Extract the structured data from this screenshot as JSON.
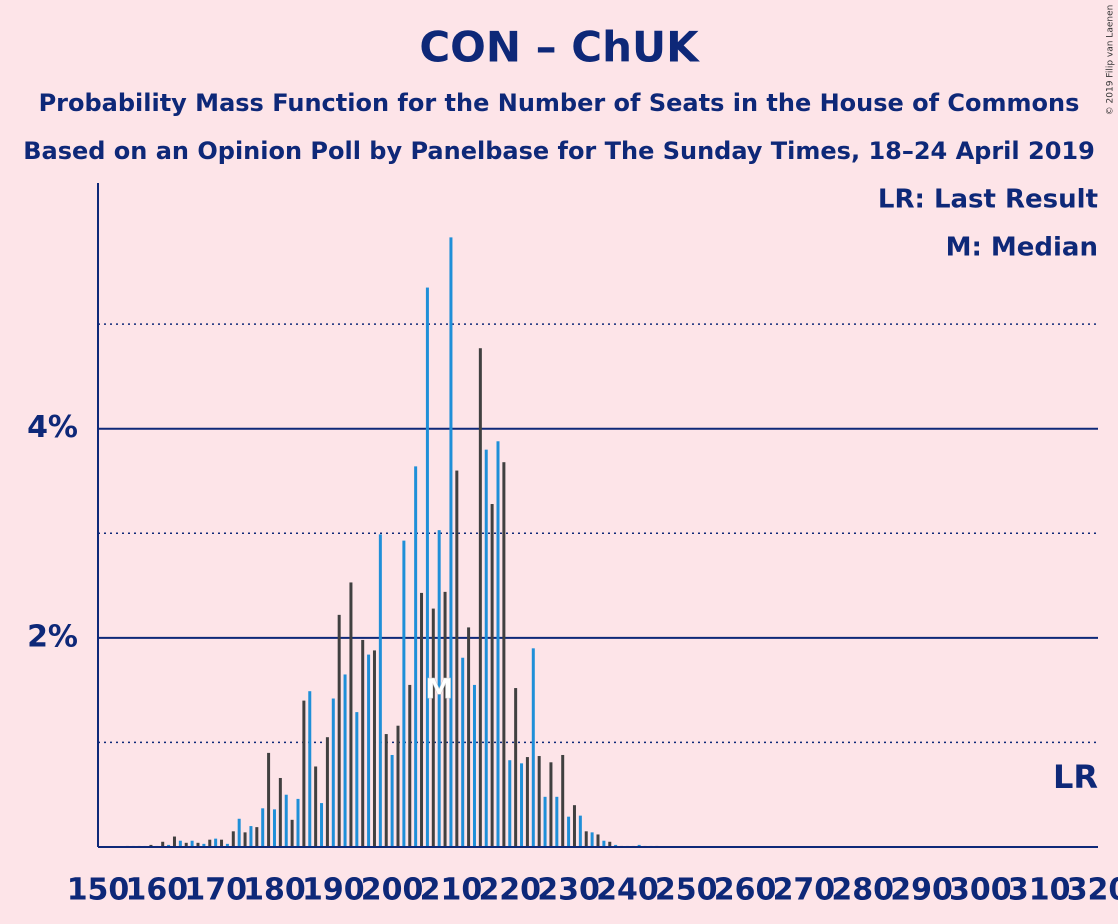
{
  "chart_data": {
    "type": "bar",
    "title": "CON – ChUK",
    "subtitle": "Probability Mass Function for the Number of Seats in the House of Commons",
    "subtitle2": "Based on an Opinion Poll by Panelbase for The Sunday Times, 18–24 April 2019",
    "legend_lines": [
      "LR: Last Result",
      "M: Median"
    ],
    "copyright": "© 2019 Filip van Laenen",
    "last_result_label": "LR",
    "median": 208,
    "median_label": "M",
    "colors": [
      "#1f8fd8",
      "#404040"
    ],
    "x": [
      155,
      156,
      157,
      158,
      159,
      160,
      161,
      162,
      163,
      164,
      165,
      166,
      167,
      168,
      169,
      170,
      171,
      172,
      173,
      174,
      175,
      176,
      177,
      178,
      179,
      180,
      181,
      182,
      183,
      184,
      185,
      186,
      187,
      188,
      189,
      190,
      191,
      192,
      193,
      194,
      195,
      196,
      197,
      198,
      199,
      200,
      201,
      202,
      203,
      204,
      205,
      206,
      207,
      208,
      209,
      210,
      211,
      212,
      213,
      214,
      215,
      216,
      217,
      218,
      219,
      220,
      221,
      222,
      223,
      224,
      225,
      226,
      227,
      228,
      229,
      230,
      231,
      232,
      233,
      234,
      235,
      236,
      237,
      238,
      239,
      240,
      241,
      242,
      243,
      244,
      245
    ],
    "values": [
      0.01,
      0.01,
      0.01,
      0.01,
      0.02,
      0.01,
      0.05,
      0.02,
      0.1,
      0.06,
      0.04,
      0.06,
      0.04,
      0.03,
      0.07,
      0.08,
      0.07,
      0.03,
      0.15,
      0.27,
      0.14,
      0.2,
      0.19,
      0.37,
      0.9,
      0.36,
      0.66,
      0.5,
      0.26,
      0.46,
      1.4,
      1.49,
      0.77,
      0.42,
      1.05,
      1.42,
      2.22,
      1.65,
      2.53,
      1.29,
      1.98,
      1.84,
      1.88,
      2.99,
      1.08,
      0.88,
      1.16,
      2.93,
      1.55,
      3.64,
      2.43,
      5.35,
      2.28,
      3.03,
      2.44,
      5.83,
      3.6,
      1.81,
      2.1,
      1.55,
      4.77,
      3.8,
      3.28,
      3.88,
      3.68,
      0.83,
      1.52,
      0.8,
      0.86,
      1.9,
      0.87,
      0.48,
      0.81,
      0.48,
      0.88,
      0.29,
      0.4,
      0.3,
      0.15,
      0.14,
      0.12,
      0.06,
      0.05,
      0.02,
      0.01,
      0.01,
      0.01,
      0.02,
      0.01,
      0.01,
      0.01
    ],
    "xlim": [
      150,
      320
    ],
    "xticks": [
      150,
      160,
      170,
      180,
      190,
      200,
      210,
      220,
      230,
      240,
      250,
      260,
      270,
      280,
      290,
      300,
      310,
      320
    ],
    "ylim": [
      0,
      6.35
    ],
    "yticks": [
      {
        "value": 2,
        "label": "2%"
      },
      {
        "value": 4,
        "label": "4%"
      }
    ],
    "minor_yticks": [
      1,
      3,
      5
    ],
    "grid": true
  }
}
